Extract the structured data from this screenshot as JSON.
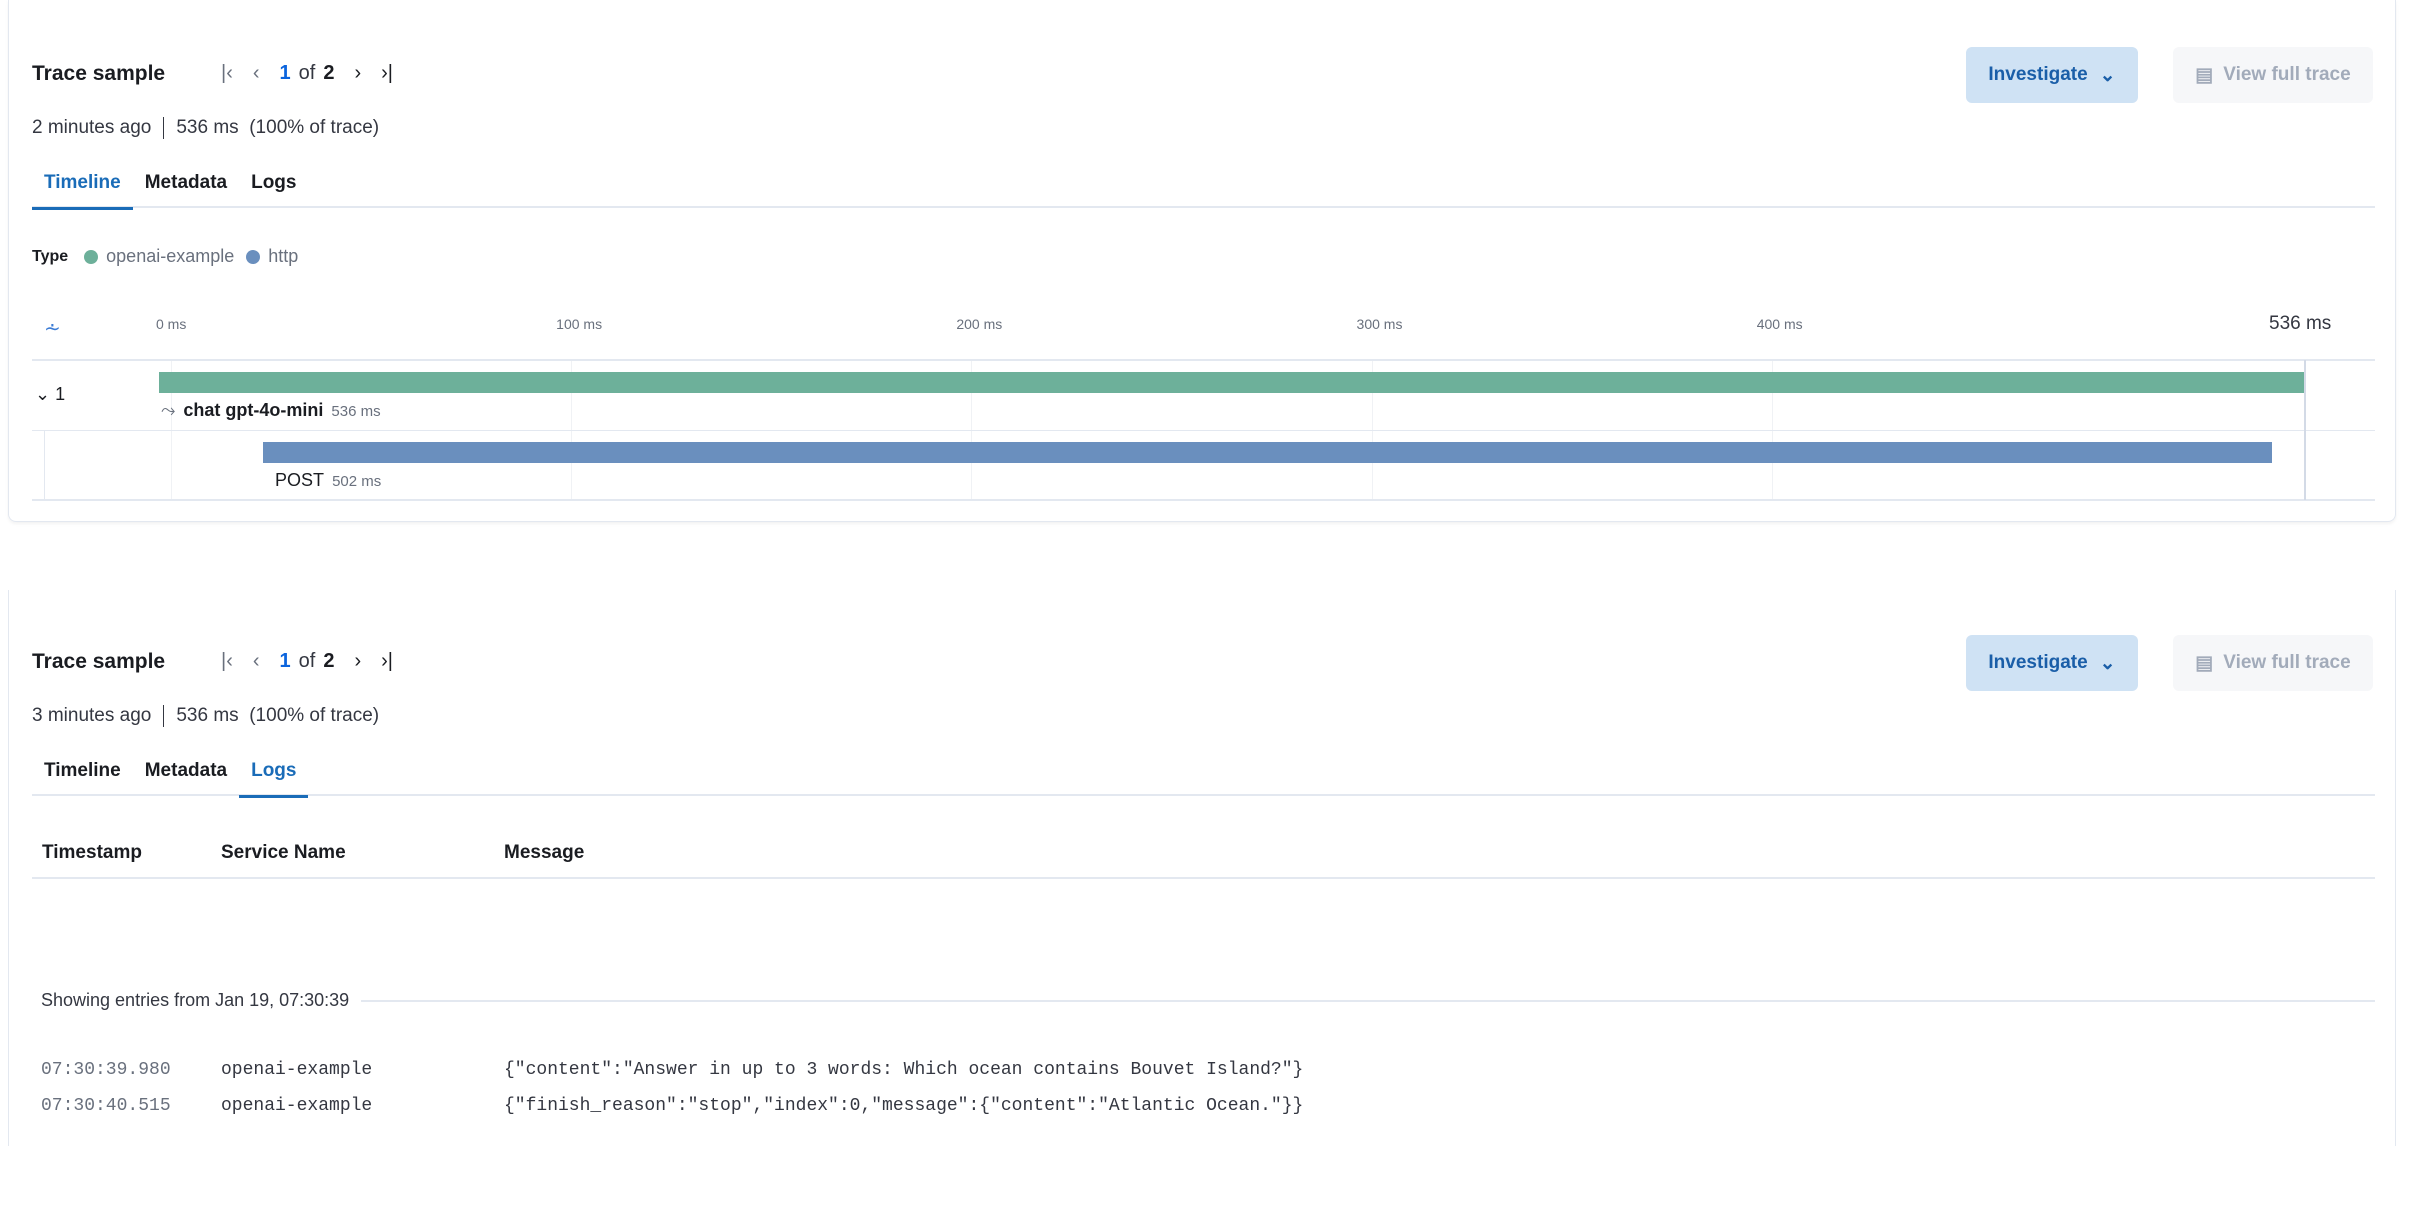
{
  "panels": [
    {
      "title": "Trace sample",
      "pager": {
        "current": "1",
        "of": "of",
        "total": "2"
      },
      "meta": {
        "age": "2 minutes ago",
        "duration": "536 ms",
        "percent": "(100% of trace)"
      },
      "tabs": [
        "Timeline",
        "Metadata",
        "Logs"
      ],
      "active_tab": "Timeline",
      "investigate_label": "Investigate",
      "view_full_trace_label": "View full trace",
      "legend": {
        "label": "Type",
        "items": [
          {
            "name": "openai-example",
            "color": "#6db09a"
          },
          {
            "name": "http",
            "color": "#6a8fbe"
          }
        ]
      },
      "timeline": {
        "ticks": [
          "0 ms",
          "100 ms",
          "200 ms",
          "300 ms",
          "400 ms"
        ],
        "end_label": "536 ms",
        "total_ms": 536,
        "group_label": "1",
        "spans": [
          {
            "name": "chat gpt-4o-mini",
            "duration": "536 ms",
            "start_ms": 0,
            "duration_ms": 536,
            "color": "#6db09a"
          },
          {
            "name": "POST",
            "duration": "502 ms",
            "start_ms": 26,
            "duration_ms": 502,
            "color": "#6a8fbe"
          }
        ]
      }
    },
    {
      "title": "Trace sample",
      "pager": {
        "current": "1",
        "of": "of",
        "total": "2"
      },
      "meta": {
        "age": "3 minutes ago",
        "duration": "536 ms",
        "percent": "(100% of trace)"
      },
      "tabs": [
        "Timeline",
        "Metadata",
        "Logs"
      ],
      "active_tab": "Logs",
      "investigate_label": "Investigate",
      "view_full_trace_label": "View full trace",
      "logs": {
        "columns": [
          "Timestamp",
          "Service Name",
          "Message"
        ],
        "separator": "Showing entries from Jan 19, 07:30:39",
        "rows": [
          {
            "timestamp": "07:30:39.980",
            "service": "openai-example",
            "message": "{\"content\":\"Answer in up to 3 words: Which ocean contains Bouvet Island?\"}"
          },
          {
            "timestamp": "07:30:40.515",
            "service": "openai-example",
            "message": "{\"finish_reason\":\"stop\",\"index\":0,\"message\":{\"content\":\"Atlantic Ocean.\"}}"
          }
        ]
      }
    }
  ]
}
